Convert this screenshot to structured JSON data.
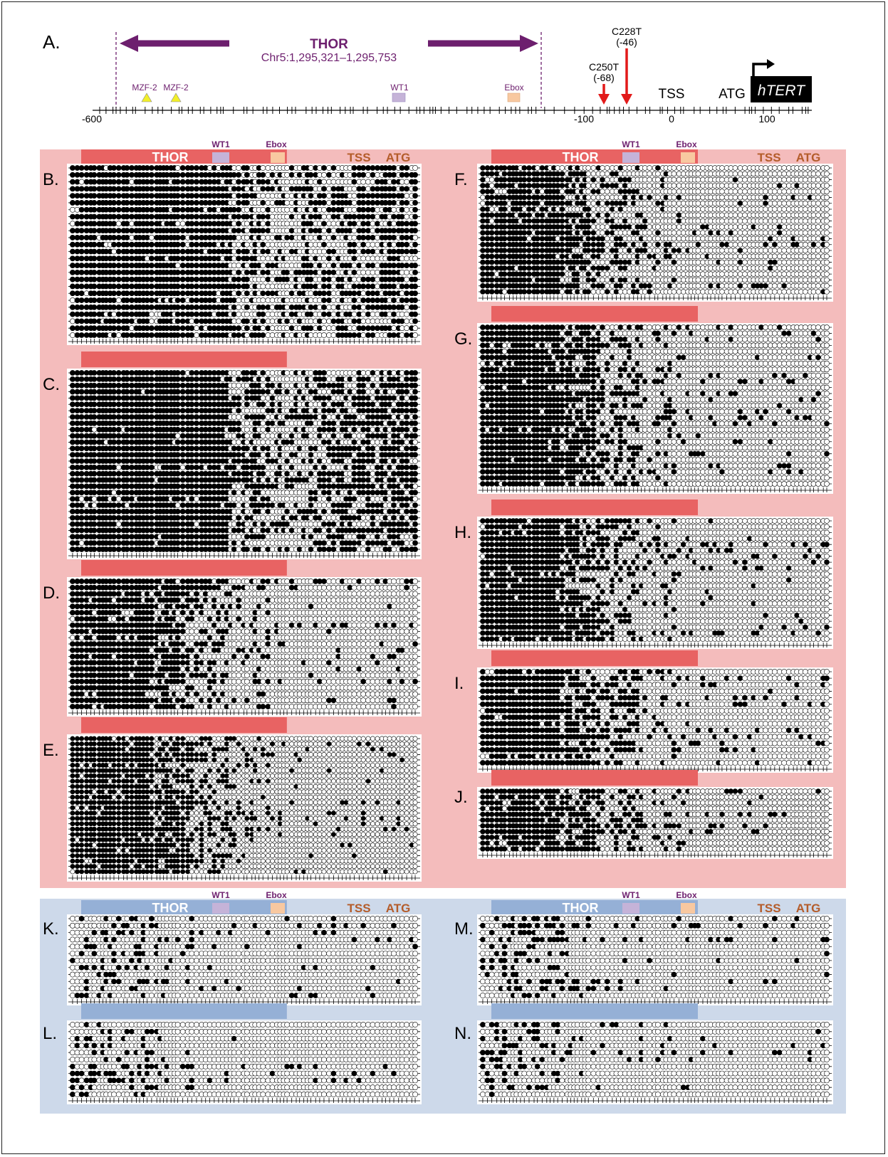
{
  "top": {
    "panel_label": "A.",
    "thor_title": "THOR",
    "thor_coords": "Chr5:1,295,321–1,295,753",
    "mzf_label_1": "MZF-2",
    "mzf_label_2": "MZF-2",
    "wt1_label": "WT1",
    "ebox_label": "Ebox",
    "c250t_label": "C250T",
    "c250t_pos": "(-68)",
    "c228t_label": "C228T",
    "c228t_pos": "(-46)",
    "tss_label": "TSS",
    "atg_label": "ATG",
    "gene_label": "hTERT",
    "axis_ticks": [
      "-600",
      "-100",
      "0",
      "100"
    ]
  },
  "headers": {
    "thor": "THOR",
    "wt1": "WT1",
    "ebox": "Ebox",
    "tss": "TSS",
    "atg": "ATG"
  },
  "panels": [
    {
      "label": "B.",
      "group": "red",
      "rows": 25,
      "pattern": "heavy"
    },
    {
      "label": "C.",
      "group": "red",
      "rows": 29,
      "pattern": "heavy"
    },
    {
      "label": "D.",
      "group": "red",
      "rows": 21,
      "pattern": "mid"
    },
    {
      "label": "E.",
      "group": "red",
      "rows": 26,
      "pattern": "mid"
    },
    {
      "label": "F.",
      "group": "red",
      "rows": 22,
      "pattern": "mid"
    },
    {
      "label": "G.",
      "group": "red",
      "rows": 27,
      "pattern": "mid"
    },
    {
      "label": "H.",
      "group": "red",
      "rows": 21,
      "pattern": "mid"
    },
    {
      "label": "I.",
      "group": "red",
      "rows": 15,
      "pattern": "mid"
    },
    {
      "label": "J.",
      "group": "red",
      "rows": 11,
      "pattern": "mid"
    },
    {
      "label": "K.",
      "group": "blue",
      "rows": 12,
      "pattern": "light"
    },
    {
      "label": "L.",
      "group": "blue",
      "rows": 11,
      "pattern": "light"
    },
    {
      "label": "M.",
      "group": "blue",
      "rows": 12,
      "pattern": "light"
    },
    {
      "label": "N.",
      "group": "blue",
      "rows": 11,
      "pattern": "light"
    }
  ],
  "colors": {
    "red_bg": "#f4bcbc",
    "red_bar": "#e86363",
    "blue_bg": "#cdd9ea",
    "blue_bar": "#95b0d6",
    "purple": "#6d1f6e",
    "brown": "#b45c2a",
    "wt1_box": "#c5b3d8",
    "ebox_box": "#f8c8a0",
    "arrow_red": "#e21a1a",
    "mzf_yellow": "#f2ef2a"
  }
}
